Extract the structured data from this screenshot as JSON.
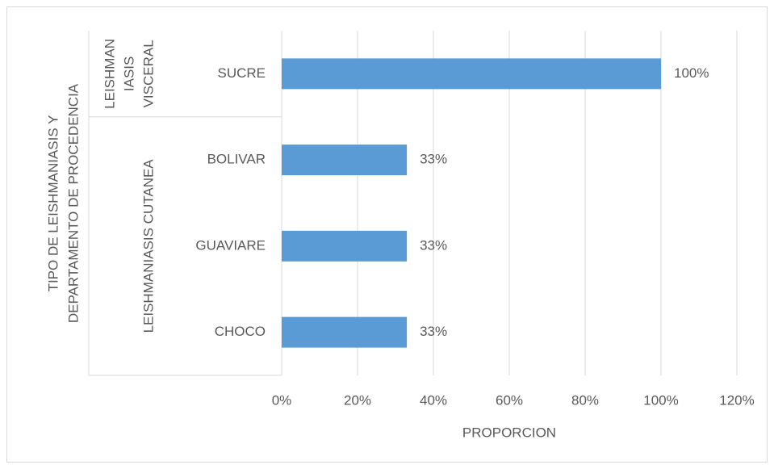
{
  "chart_data": {
    "type": "bar",
    "orientation": "horizontal",
    "y_label": [
      "TIPO DE LEISHMANIASIS Y",
      "DEPARTAMENTO DE PROCEDENCIA"
    ],
    "x_label": "PROPORCION",
    "groups": [
      {
        "label": [
          "LEISHMAN",
          "IASIS",
          "VISCERAL"
        ],
        "categories": [
          "SUCRE"
        ],
        "values": [
          100
        ],
        "value_labels": [
          "100%"
        ]
      },
      {
        "label": [
          "LEISHMANIASIS CUTANEA"
        ],
        "categories": [
          "BOLIVAR",
          "GUAVIARE",
          "CHOCO"
        ],
        "values": [
          33,
          33,
          33
        ],
        "value_labels": [
          "33%",
          "33%",
          "33%"
        ]
      }
    ],
    "color": "#5b9bd5",
    "xlim": [
      0,
      120
    ],
    "xticks": [
      {
        "value": 0,
        "label": "0%"
      },
      {
        "value": 20,
        "label": "20%"
      },
      {
        "value": 40,
        "label": "40%"
      },
      {
        "value": 60,
        "label": "60%"
      },
      {
        "value": 80,
        "label": "80%"
      },
      {
        "value": 100,
        "label": "100%"
      },
      {
        "value": 120,
        "label": "120%"
      }
    ],
    "grid": true
  }
}
